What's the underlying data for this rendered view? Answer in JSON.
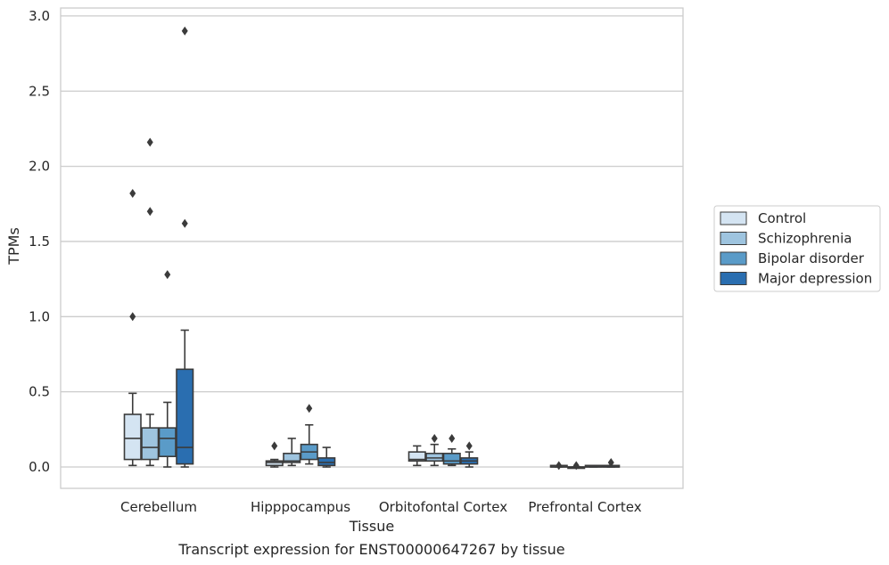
{
  "chart_data": {
    "type": "box",
    "caption": "Transcript expression for ENST00000647267 by tissue",
    "xlabel": "Tissue",
    "ylabel": "TPMs",
    "ylim": [
      -0.14,
      3.05
    ],
    "yticks": [
      0.0,
      0.5,
      1.0,
      1.5,
      2.0,
      2.5,
      3.0
    ],
    "ytick_labels": [
      "0.0",
      "0.5",
      "1.0",
      "1.5",
      "2.0",
      "2.5",
      "3.0"
    ],
    "grid": "horizontal",
    "legend_position": "right",
    "categories": [
      "Cerebellum",
      "Hipppocampus",
      "Orbitofontal Cortex",
      "Prefrontal Cortex"
    ],
    "series": [
      {
        "name": "Control",
        "color": "#d4e4f2",
        "boxes": [
          {
            "whislo": 0.01,
            "q1": 0.05,
            "med": 0.19,
            "q3": 0.35,
            "whishi": 0.49,
            "fliers": [
              1.0,
              1.82
            ]
          },
          {
            "whislo": 0.0,
            "q1": 0.01,
            "med": 0.03,
            "q3": 0.04,
            "whishi": 0.05,
            "fliers": [
              0.14
            ]
          },
          {
            "whislo": 0.01,
            "q1": 0.04,
            "med": 0.05,
            "q3": 0.1,
            "whishi": 0.14,
            "fliers": []
          },
          {
            "whislo": 0.0,
            "q1": 0.0,
            "med": 0.0,
            "q3": 0.01,
            "whishi": 0.01,
            "fliers": [
              0.01
            ]
          }
        ]
      },
      {
        "name": "Schizophrenia",
        "color": "#9ec4df",
        "boxes": [
          {
            "whislo": 0.01,
            "q1": 0.05,
            "med": 0.13,
            "q3": 0.26,
            "whishi": 0.35,
            "fliers": [
              1.7,
              2.16
            ]
          },
          {
            "whislo": 0.01,
            "q1": 0.03,
            "med": 0.04,
            "q3": 0.09,
            "whishi": 0.19,
            "fliers": []
          },
          {
            "whislo": 0.01,
            "q1": 0.04,
            "med": 0.06,
            "q3": 0.09,
            "whishi": 0.15,
            "fliers": [
              0.19
            ]
          },
          {
            "whislo": 0.0,
            "q1": 0.0,
            "med": 0.0,
            "q3": 0.0,
            "whishi": 0.0,
            "fliers": [
              0.01
            ]
          }
        ]
      },
      {
        "name": "Bipolar disorder",
        "color": "#5a9bc8",
        "boxes": [
          {
            "whislo": 0.0,
            "q1": 0.07,
            "med": 0.19,
            "q3": 0.26,
            "whishi": 0.43,
            "fliers": [
              1.28
            ]
          },
          {
            "whislo": 0.02,
            "q1": 0.05,
            "med": 0.1,
            "q3": 0.15,
            "whishi": 0.28,
            "fliers": [
              0.39
            ]
          },
          {
            "whislo": 0.01,
            "q1": 0.02,
            "med": 0.04,
            "q3": 0.09,
            "whishi": 0.12,
            "fliers": [
              0.19
            ]
          },
          {
            "whislo": 0.0,
            "q1": 0.0,
            "med": 0.0,
            "q3": 0.01,
            "whishi": 0.01,
            "fliers": []
          }
        ]
      },
      {
        "name": "Major depression",
        "color": "#2a6eb0",
        "boxes": [
          {
            "whislo": 0.0,
            "q1": 0.02,
            "med": 0.13,
            "q3": 0.65,
            "whishi": 0.91,
            "fliers": [
              1.62,
              2.9
            ]
          },
          {
            "whislo": 0.0,
            "q1": 0.01,
            "med": 0.03,
            "q3": 0.06,
            "whishi": 0.13,
            "fliers": []
          },
          {
            "whislo": 0.0,
            "q1": 0.02,
            "med": 0.04,
            "q3": 0.06,
            "whishi": 0.1,
            "fliers": [
              0.14
            ]
          },
          {
            "whislo": 0.0,
            "q1": 0.0,
            "med": 0.0,
            "q3": 0.01,
            "whishi": 0.01,
            "fliers": [
              0.03
            ]
          }
        ]
      }
    ]
  }
}
